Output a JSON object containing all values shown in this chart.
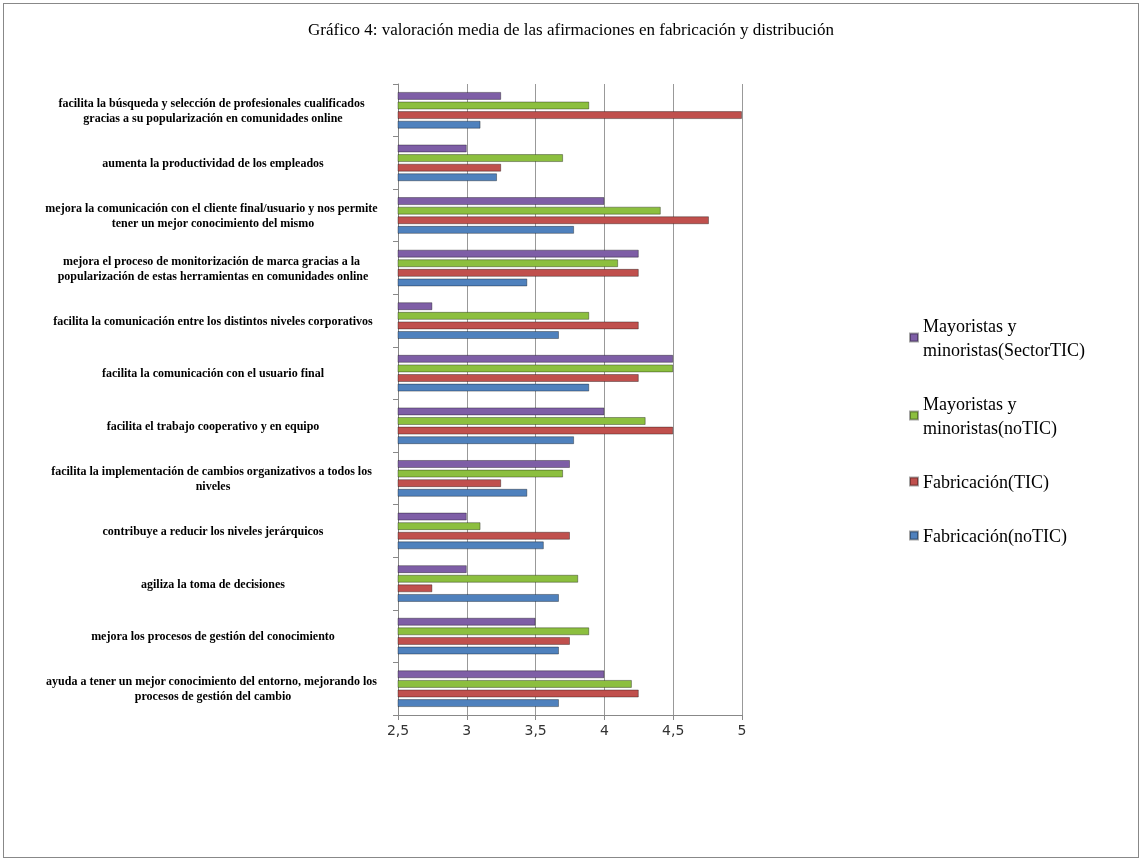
{
  "chart_data": {
    "type": "bar",
    "orientation": "horizontal",
    "title": "Gráfico 4: valoración media de las afirmaciones en fabricación y distribución",
    "categories": [
      "facilita la búsqueda y selección de profesionales cualificados gracias a su popularización en comunidades online",
      "aumenta la productividad de los empleados",
      "mejora la comunicación con el cliente final/usuario y nos permite tener un mejor conocimiento del mismo",
      "mejora el proceso de monitorización de marca gracias a la popularización de estas herramientas en comunidades online",
      "facilita la comunicación entre los distintos niveles corporativos",
      "facilita la comunicación con el usuario final",
      "facilita el trabajo cooperativo y en equipo",
      "facilita la implementación de cambios organizativos a todos los niveles",
      "contribuye a reducir los niveles jerárquicos",
      "agiliza la toma de decisiones",
      "mejora los procesos de gestión del conocimiento",
      "ayuda a tener un mejor conocimiento del entorno, mejorando los procesos de gestión del cambio"
    ],
    "series": [
      {
        "name": "Mayoristas y minoristas(SectorTIC)",
        "color": "#7e5ea6",
        "values": [
          3.25,
          3.0,
          4.0,
          4.25,
          2.75,
          4.5,
          4.0,
          3.75,
          3.0,
          3.0,
          3.5,
          4.0
        ]
      },
      {
        "name": "Mayoristas y minoristas(noTIC)",
        "color": "#8cbf3f",
        "values": [
          3.89,
          3.7,
          4.41,
          4.1,
          3.89,
          4.5,
          4.3,
          3.7,
          3.1,
          3.81,
          3.89,
          4.2
        ]
      },
      {
        "name": "Fabricación(TIC)",
        "color": "#c0504d",
        "values": [
          5.0,
          3.25,
          4.76,
          4.25,
          4.25,
          4.25,
          4.5,
          3.25,
          3.75,
          2.75,
          3.75,
          4.25
        ]
      },
      {
        "name": "Fabricación(noTIC)",
        "color": "#4f81bd",
        "values": [
          3.1,
          3.22,
          3.78,
          3.44,
          3.67,
          3.89,
          3.78,
          3.44,
          3.56,
          3.67,
          3.67,
          3.67
        ]
      }
    ],
    "xlim": [
      2.5,
      5
    ],
    "xticks": [
      {
        "value": 2.5,
        "label": "2,5"
      },
      3,
      {
        "value": 3.5,
        "label": "3,5"
      },
      4,
      {
        "value": 4.5,
        "label": "4,5"
      },
      5
    ],
    "grid": "x",
    "legend": "right"
  }
}
